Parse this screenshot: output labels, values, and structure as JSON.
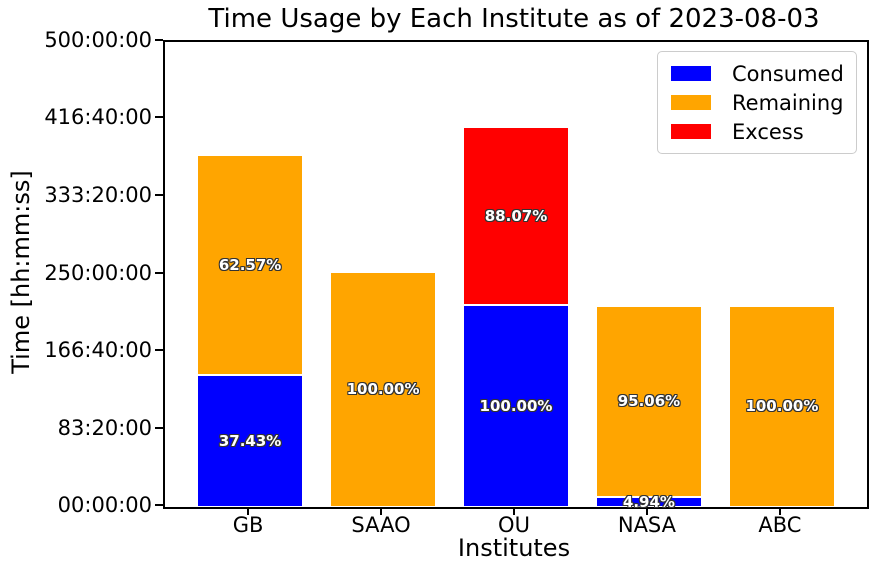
{
  "chart_data": {
    "type": "bar",
    "stacked": true,
    "title": "Time Usage by Each Institute as of 2023-08-03",
    "xlabel": "Institutes",
    "ylabel": "Time [hh:mm:ss]",
    "ylim_hours": [
      0,
      500
    ],
    "grid": false,
    "yticks": [
      {
        "hours": 500,
        "label": "500:00:00"
      },
      {
        "hours": 416.6667,
        "label": "416:40:00"
      },
      {
        "hours": 333.3333,
        "label": "333:20:00"
      },
      {
        "hours": 250,
        "label": "250:00:00"
      },
      {
        "hours": 166.6667,
        "label": "166:40:00"
      },
      {
        "hours": 83.3333,
        "label": "83:20:00"
      },
      {
        "hours": 0,
        "label": "00:00:00"
      }
    ],
    "categories": [
      "GB",
      "SAAO",
      "OU",
      "NASA",
      "ABC"
    ],
    "series": [
      {
        "name": "Consumed",
        "color": "#0000ff",
        "values_hours": [
          141.8,
          0,
          217.0,
          10.7,
          0
        ],
        "labels": [
          "37.43%",
          "",
          "100.00%",
          "4.94%",
          ""
        ]
      },
      {
        "name": "Remaining",
        "color": "#ffa500",
        "values_hours": [
          237.0,
          252.8,
          0,
          205.9,
          216.6
        ],
        "labels": [
          "62.57%",
          "100.00%",
          "",
          "95.06%",
          "100.00%"
        ]
      },
      {
        "name": "Excess",
        "color": "#ff0000",
        "values_hours": [
          0,
          0,
          191.1,
          0,
          0
        ],
        "labels": [
          "",
          "",
          "88.07%",
          "",
          ""
        ]
      }
    ],
    "legend": {
      "position": "upper right",
      "entries": [
        "Consumed",
        "Remaining",
        "Excess"
      ]
    }
  }
}
